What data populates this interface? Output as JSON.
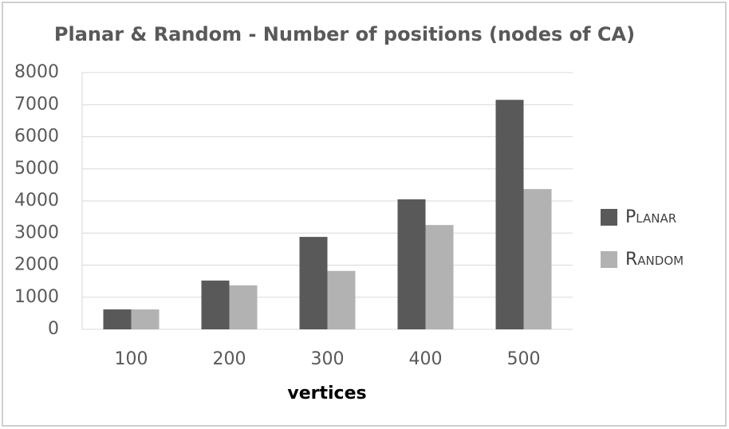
{
  "chart_data": {
    "type": "bar",
    "title": "Planar & Random - Number of positions (nodes of CA)",
    "x_label": "vertices",
    "categories": [
      "100",
      "200",
      "300",
      "400",
      "500"
    ],
    "series": [
      {
        "name": "Planar",
        "color": "#595959",
        "values": [
          620,
          1520,
          2880,
          4050,
          7150
        ]
      },
      {
        "name": "Random",
        "color": "#b2b2b2",
        "values": [
          620,
          1370,
          1820,
          3250,
          4370
        ]
      }
    ],
    "ylim": [
      0,
      8000
    ],
    "yticks": [
      0,
      1000,
      2000,
      3000,
      4000,
      5000,
      6000,
      7000,
      8000
    ],
    "grid": true,
    "legend": "right"
  }
}
